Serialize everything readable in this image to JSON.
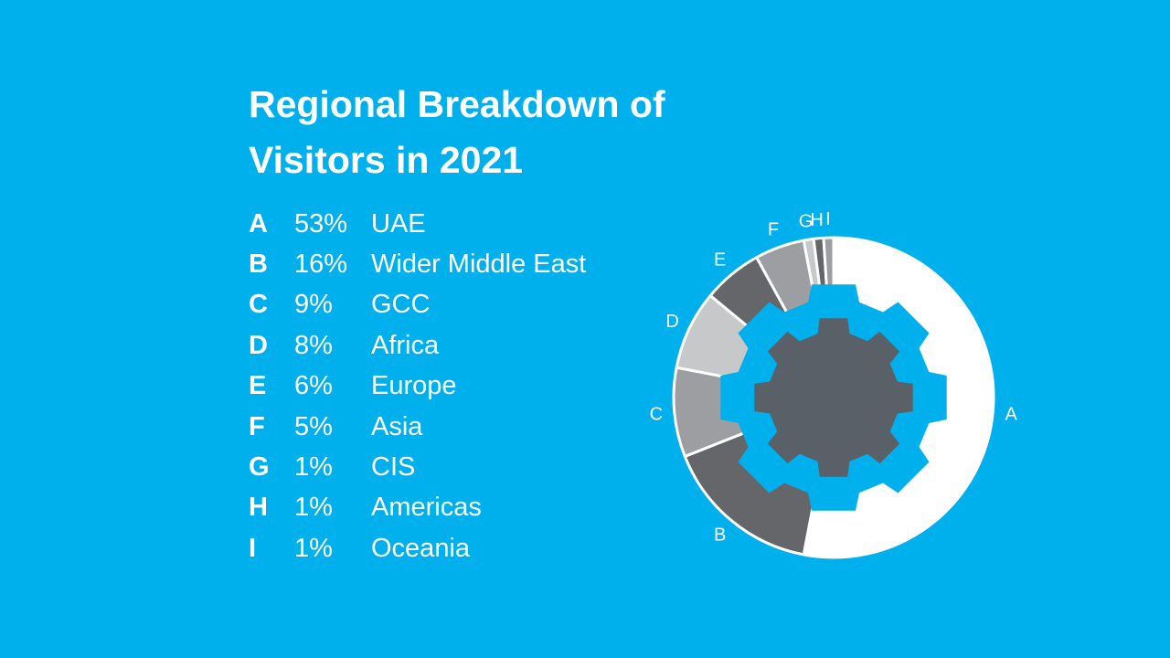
{
  "title_line1": "Regional Breakdown of",
  "title_line2": "Visitors in 2021",
  "colors": {
    "background": "#00b0ec",
    "gear": "#5a6068",
    "text": "#ffffff"
  },
  "chart_data": {
    "type": "pie",
    "style": "donut",
    "title": "Regional Breakdown of Visitors in 2021",
    "categories": [
      "A",
      "B",
      "C",
      "D",
      "E",
      "F",
      "G",
      "H",
      "I"
    ],
    "values": [
      53,
      16,
      9,
      8,
      6,
      5,
      1,
      1,
      1
    ],
    "unit": "%",
    "legend": [
      {
        "key": "A",
        "percent": "53%",
        "region": "UAE",
        "color": "#ffffff"
      },
      {
        "key": "B",
        "percent": "16%",
        "region": "Wider Middle East",
        "color": "#646669"
      },
      {
        "key": "C",
        "percent": "9%",
        "region": "GCC",
        "color": "#9d9ea1"
      },
      {
        "key": "D",
        "percent": "8%",
        "region": "Africa",
        "color": "#c7c8ca"
      },
      {
        "key": "E",
        "percent": "6%",
        "region": "Europe",
        "color": "#646669"
      },
      {
        "key": "F",
        "percent": "5%",
        "region": "Asia",
        "color": "#9d9ea1"
      },
      {
        "key": "G",
        "percent": "1%",
        "region": "CIS",
        "color": "#c7c8ca"
      },
      {
        "key": "H",
        "percent": "1%",
        "region": "Americas",
        "color": "#646669"
      },
      {
        "key": "I",
        "percent": "1%",
        "region": "Oceania",
        "color": "#9d9ea1"
      }
    ],
    "legend_placement": "left"
  }
}
